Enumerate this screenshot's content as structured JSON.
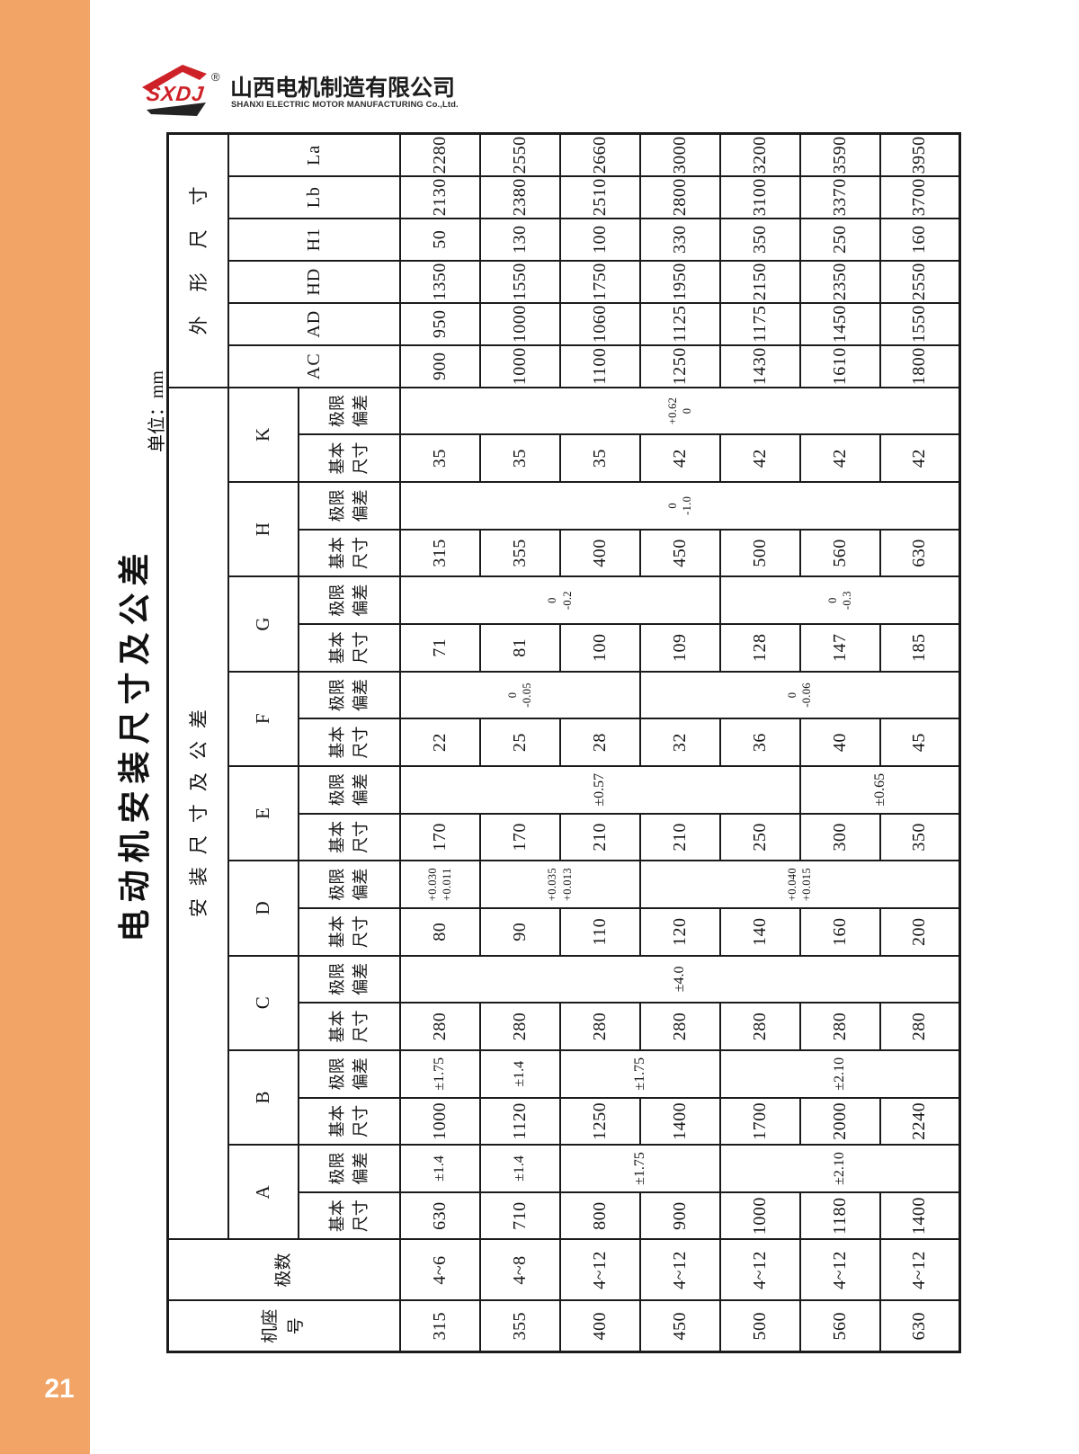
{
  "page": {
    "number": "21",
    "accent_color": "#F1A466",
    "ink_color": "#1b1b1b",
    "logo_red": "#CE2127"
  },
  "logo": {
    "abbr": "SXDJ",
    "registered": "®",
    "company_cn": "山西电机制造有限公司",
    "company_en": "SHANXI ELECTRIC MOTOR MANUFACTURING Co.,Ltd."
  },
  "title": "电动机安装尺寸及公差",
  "unit_label": "单位：mm",
  "table": {
    "corner": {
      "frame": "机座号",
      "poles": "极数"
    },
    "groups": {
      "install": "安装尺寸及公差",
      "outline": "外形尺寸"
    },
    "subcols": {
      "basic": "基本尺寸",
      "dev": "极限偏差"
    },
    "install_dims": [
      "A",
      "B",
      "C",
      "D",
      "E",
      "F",
      "G",
      "H",
      "K"
    ],
    "outline_dims": [
      "AC",
      "AD",
      "HD",
      "H1",
      "Lb",
      "La"
    ],
    "frames": [
      "315",
      "355",
      "400",
      "450",
      "500",
      "560",
      "630"
    ],
    "poles": [
      "4~6",
      "4~8",
      "4~12",
      "4~12",
      "4~12",
      "4~12",
      "4~12"
    ],
    "basic": {
      "A": [
        "630",
        "710",
        "800",
        "900",
        "1000",
        "1180",
        "1400"
      ],
      "B": [
        "1000",
        "1120",
        "1250",
        "1400",
        "1700",
        "2000",
        "2240"
      ],
      "C": [
        "280",
        "280",
        "280",
        "280",
        "280",
        "280",
        "280"
      ],
      "D": [
        "80",
        "90",
        "110",
        "120",
        "140",
        "160",
        "200"
      ],
      "E": [
        "170",
        "170",
        "210",
        "210",
        "250",
        "300",
        "350"
      ],
      "F": [
        "22",
        "25",
        "28",
        "32",
        "36",
        "40",
        "45"
      ],
      "G": [
        "71",
        "81",
        "100",
        "109",
        "128",
        "147",
        "185"
      ],
      "H": [
        "315",
        "355",
        "400",
        "450",
        "500",
        "560",
        "630"
      ],
      "K": [
        "35",
        "35",
        "35",
        "42",
        "42",
        "42",
        "42"
      ]
    },
    "dev": {
      "A": [
        {
          "from": 0,
          "to": 0,
          "lines": [
            "±1.4"
          ]
        },
        {
          "from": 1,
          "to": 1,
          "lines": [
            "±1.4"
          ]
        },
        {
          "from": 2,
          "to": 3,
          "lines": [
            "±1.75"
          ]
        },
        {
          "from": 4,
          "to": 6,
          "lines": [
            "±2.10"
          ]
        }
      ],
      "B": [
        {
          "from": 0,
          "to": 0,
          "lines": [
            "±1.75"
          ]
        },
        {
          "from": 1,
          "to": 1,
          "lines": [
            "±1.4"
          ]
        },
        {
          "from": 2,
          "to": 3,
          "lines": [
            "±1.75"
          ]
        },
        {
          "from": 4,
          "to": 6,
          "lines": [
            "±2.10"
          ]
        }
      ],
      "C": [
        {
          "from": 0,
          "to": 6,
          "lines": [
            "±4.0"
          ]
        }
      ],
      "D": [
        {
          "from": 0,
          "to": 0,
          "lines": [
            "+0.030",
            "+0.011"
          ]
        },
        {
          "from": 1,
          "to": 2,
          "lines": [
            "+0.035",
            "+0.013"
          ]
        },
        {
          "from": 3,
          "to": 6,
          "lines": [
            "+0.040",
            "+0.015"
          ]
        }
      ],
      "E": [
        {
          "from": 0,
          "to": 4,
          "lines": [
            "±0.57"
          ]
        },
        {
          "from": 5,
          "to": 6,
          "lines": [
            "±0.65"
          ]
        }
      ],
      "F": [
        {
          "from": 0,
          "to": 2,
          "lines": [
            "0",
            "-0.05"
          ]
        },
        {
          "from": 3,
          "to": 6,
          "lines": [
            "0",
            "-0.06"
          ]
        }
      ],
      "G": [
        {
          "from": 0,
          "to": 3,
          "lines": [
            "0",
            "-0.2"
          ]
        },
        {
          "from": 4,
          "to": 6,
          "lines": [
            "0",
            "-0.3"
          ]
        }
      ],
      "H": [
        {
          "from": 0,
          "to": 6,
          "lines": [
            "0",
            "-1.0"
          ]
        }
      ],
      "K": [
        {
          "from": 0,
          "to": 6,
          "lines": [
            "+0.62",
            "0"
          ]
        }
      ]
    },
    "outline": {
      "AC": [
        "900",
        "1000",
        "1100",
        "1250",
        "1430",
        "1610",
        "1800"
      ],
      "AD": [
        "950",
        "1000",
        "1060",
        "1125",
        "1175",
        "1450",
        "1550"
      ],
      "HD": [
        "1350",
        "1550",
        "1750",
        "1950",
        "2150",
        "2350",
        "2550"
      ],
      "H1": [
        "50",
        "130",
        "100",
        "330",
        "350",
        "250",
        "160"
      ],
      "Lb": [
        "2130",
        "2380",
        "2510",
        "2800",
        "3100",
        "3370",
        "3700"
      ],
      "La": [
        "2280",
        "2550",
        "2660",
        "3000",
        "3200",
        "3590",
        "3950"
      ]
    }
  }
}
